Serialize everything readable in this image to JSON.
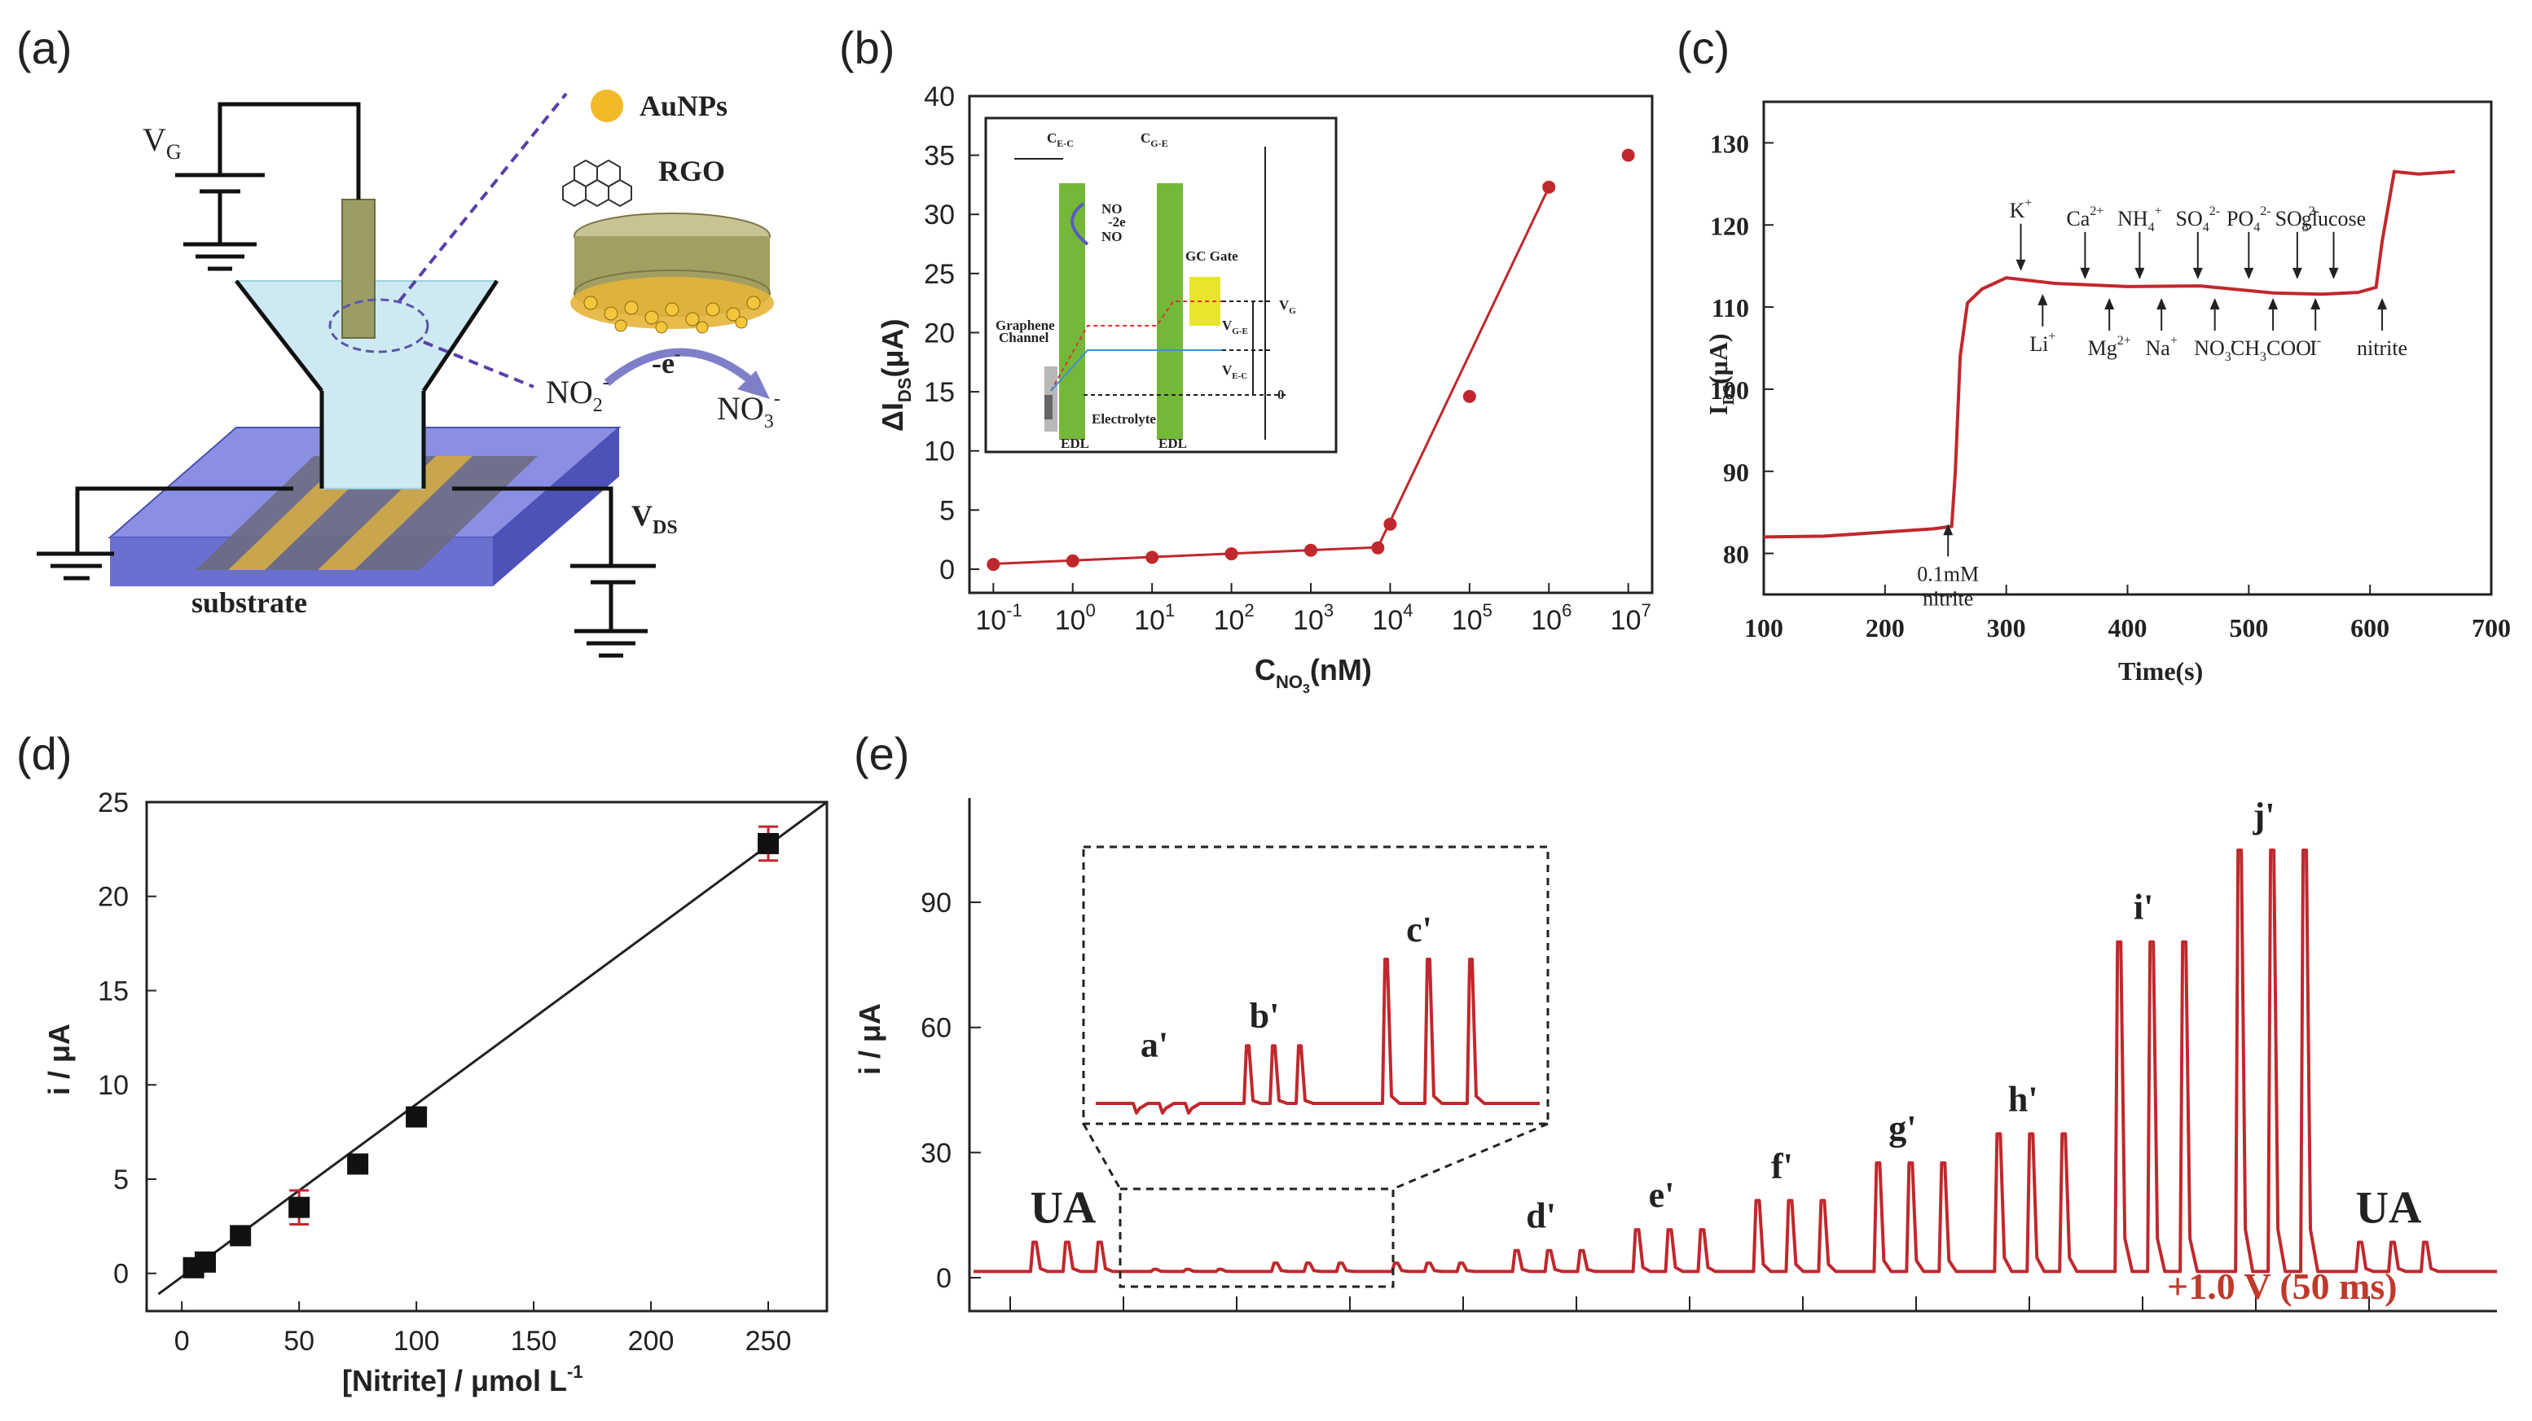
{
  "colors": {
    "series": "#c0282d",
    "fit": "#222222",
    "marker": "#111111",
    "gate": "#6fae2e",
    "substrate": "#7b7fd6",
    "electrode": "#c7a24a",
    "liquid": "#cfeaf2"
  },
  "panels": {
    "a": "(a)",
    "b": "(b)",
    "c": "(c)",
    "d": "(d)",
    "e": "(e)"
  },
  "schematic": {
    "vg": "V",
    "vg_sub": "G",
    "vds": "V",
    "vds_sub": "DS",
    "substrate": "substrate",
    "aunps": "AuNPs",
    "rgo": "RGO",
    "electron": "-e",
    "electron_sup": "-",
    "no2": "NO",
    "no2_sub": "2",
    "no2_sup": "-",
    "no3": "NO",
    "no3_sub": "3",
    "no3_sup": "-"
  },
  "inset_b": {
    "cec": "C",
    "cec_sub": "E-C",
    "cge": "C",
    "cge_sub": "G-E",
    "reaction1": "NO",
    "reaction2": "-2e",
    "reaction3": "NO",
    "gc_gate": "GC Gate",
    "graphene1": "Graphene",
    "graphene2": "Channel",
    "vg": "V",
    "vg_sub": "G",
    "vge": "V",
    "vge_sub": "G-E",
    "vec": "V",
    "vec_sub": "E-C",
    "zero": "0",
    "edl1": "EDL",
    "edl2": "EDL",
    "electrolyte": "Electrolyte"
  },
  "chart_data": [
    {
      "id": "b",
      "type": "scatter",
      "xscale": "log",
      "xlim": [
        0.05,
        20000000
      ],
      "ylim": [
        -2,
        40
      ],
      "xticks": [
        {
          "v": 0.1,
          "base": "10",
          "exp": "-1"
        },
        {
          "v": 1,
          "base": "10",
          "exp": "0"
        },
        {
          "v": 10,
          "base": "10",
          "exp": "1"
        },
        {
          "v": 100,
          "base": "10",
          "exp": "2"
        },
        {
          "v": 1000,
          "base": "10",
          "exp": "3"
        },
        {
          "v": 10000,
          "base": "10",
          "exp": "4"
        },
        {
          "v": 100000,
          "base": "10",
          "exp": "5"
        },
        {
          "v": 1000000,
          "base": "10",
          "exp": "6"
        },
        {
          "v": 10000000,
          "base": "10",
          "exp": "7"
        }
      ],
      "yticks": [
        "0",
        "5",
        "10",
        "15",
        "20",
        "25",
        "30",
        "35",
        "40"
      ],
      "xlabel": "C",
      "xlabel_sub": "NO",
      "xlabel_sub2": "3",
      "xlabel_unit": "(nM)",
      "ylabel": "ΔI",
      "ylabel_sub": "DS",
      "ylabel_unit": "(μA)",
      "points": [
        {
          "x": 0.1,
          "y": 0.4
        },
        {
          "x": 1,
          "y": 0.7
        },
        {
          "x": 10,
          "y": 1.0
        },
        {
          "x": 100,
          "y": 1.3
        },
        {
          "x": 1000,
          "y": 1.6
        },
        {
          "x": 7000,
          "y": 1.8
        },
        {
          "x": 10000,
          "y": 3.8
        },
        {
          "x": 100000,
          "y": 14.6
        },
        {
          "x": 1000000,
          "y": 32.3
        },
        {
          "x": 10000000,
          "y": 35.0
        }
      ],
      "fit1": {
        "x": [
          0.1,
          7000
        ],
        "y": [
          0.45,
          1.85
        ]
      },
      "fit2": {
        "x": [
          7000,
          1000000
        ],
        "y": [
          1.85,
          32.3
        ]
      }
    },
    {
      "id": "c",
      "type": "line",
      "xlim": [
        100,
        700
      ],
      "ylim": [
        75,
        135
      ],
      "xticks": [
        "100",
        "200",
        "300",
        "400",
        "500",
        "600",
        "700"
      ],
      "yticks": [
        "80",
        "90",
        "100",
        "110",
        "120",
        "130"
      ],
      "xlabel": "Time(s)",
      "ylabel": "I",
      "ylabel_sub": "DS",
      "ylabel_unit": "(μA)",
      "series": [
        {
          "x": [
            100,
            150,
            200,
            240,
            255,
            258,
            262,
            268,
            280,
            300,
            340,
            400,
            460,
            520,
            560,
            590,
            605,
            610,
            620,
            640,
            670
          ],
          "y": [
            82.0,
            82.1,
            82.6,
            83.0,
            83.3,
            90.0,
            104.0,
            110.5,
            112.5,
            113.3,
            112.9,
            112.2,
            112.5,
            112.0,
            111.6,
            112.0,
            112.4,
            118.0,
            126.5,
            126.2,
            126.5
          ]
        }
      ],
      "annotations": [
        {
          "x": 252,
          "y": 84,
          "lines": [
            "0.1mM",
            "nitrite"
          ],
          "pos": "below"
        },
        {
          "x": 312,
          "y": 114,
          "lines": [
            "K"
          ],
          "sup": "+",
          "pos": "above"
        },
        {
          "x": 330,
          "y": 112,
          "lines": [
            "Li"
          ],
          "sup": "+",
          "pos": "below"
        },
        {
          "x": 365,
          "y": 113,
          "lines": [
            "Ca"
          ],
          "sup": "2+",
          "pos": "above"
        },
        {
          "x": 385,
          "y": 111.5,
          "lines": [
            "Mg"
          ],
          "sup": "2+",
          "pos": "below"
        },
        {
          "x": 410,
          "y": 113,
          "lines": [
            "NH"
          ],
          "sub": "4",
          "sup": "+",
          "pos": "above"
        },
        {
          "x": 428,
          "y": 111.5,
          "lines": [
            "Na"
          ],
          "sup": "+",
          "pos": "below"
        },
        {
          "x": 458,
          "y": 113,
          "lines": [
            "SO"
          ],
          "sub": "4",
          "sup": "2-",
          "pos": "above"
        },
        {
          "x": 472,
          "y": 111.5,
          "lines": [
            "NO"
          ],
          "sub": "3",
          "sup": "-",
          "pos": "below"
        },
        {
          "x": 500,
          "y": 113,
          "lines": [
            "PO"
          ],
          "sub": "4",
          "sup": "2-",
          "pos": "above"
        },
        {
          "x": 520,
          "y": 111.5,
          "lines": [
            "CH"
          ],
          "sub": "3",
          "extra": "COO",
          "sup": "-",
          "pos": "below"
        },
        {
          "x": 540,
          "y": 113,
          "lines": [
            "SO"
          ],
          "sub": "3",
          "sup": "2-",
          "pos": "above"
        },
        {
          "x": 555,
          "y": 111.5,
          "lines": [
            "I"
          ],
          "sup": "-",
          "pos": "below"
        },
        {
          "x": 570,
          "y": 113,
          "lines": [
            "glucose"
          ],
          "pos": "above"
        },
        {
          "x": 610,
          "y": 111.5,
          "lines": [
            "nitrite"
          ],
          "pos": "below"
        }
      ]
    },
    {
      "id": "d",
      "type": "scatter",
      "xlim": [
        -15,
        275
      ],
      "ylim": [
        -2,
        25
      ],
      "xticks": [
        "0",
        "50",
        "100",
        "150",
        "200",
        "250"
      ],
      "yticks": [
        "0",
        "5",
        "10",
        "15",
        "20",
        "25"
      ],
      "xlabel": "[Nitrite] / μmol L",
      "xlabel_sup": "-1",
      "ylabel": "i / μA",
      "points": [
        {
          "x": 5,
          "y": 0.3,
          "err": 0.3
        },
        {
          "x": 10,
          "y": 0.6,
          "err": 0.3
        },
        {
          "x": 25,
          "y": 2.0,
          "err": 0.4
        },
        {
          "x": 50,
          "y": 3.5,
          "err": 0.9
        },
        {
          "x": 75,
          "y": 5.8,
          "err": 0.4
        },
        {
          "x": 100,
          "y": 8.3,
          "err": 0.4
        },
        {
          "x": 250,
          "y": 22.8,
          "err": 0.9
        }
      ],
      "fit": {
        "x": [
          -10,
          275
        ],
        "y": [
          -1.1,
          25.0
        ]
      }
    },
    {
      "id": "e",
      "type": "line",
      "ylim": [
        -8,
        115
      ],
      "yticks": [
        "0",
        "30",
        "60",
        "90"
      ],
      "ylabel": "i / μA",
      "groups": [
        {
          "label": "UA",
          "h": 7,
          "n": 3
        },
        {
          "label": "a'",
          "h": 0.5,
          "n": 3
        },
        {
          "label": "b'",
          "h": 2,
          "n": 3
        },
        {
          "label": "c'",
          "h": 2,
          "n": 3
        },
        {
          "label": "d'",
          "h": 5,
          "n": 3
        },
        {
          "label": "e'",
          "h": 10,
          "n": 3
        },
        {
          "label": "f'",
          "h": 17,
          "n": 3
        },
        {
          "label": "g'",
          "h": 26,
          "n": 3
        },
        {
          "label": "h'",
          "h": 33,
          "n": 3
        },
        {
          "label": "i'",
          "h": 79,
          "n": 3
        },
        {
          "label": "j'",
          "h": 101,
          "n": 3
        },
        {
          "label": "UA",
          "h": 7,
          "n": 3
        }
      ],
      "inset_groups": [
        {
          "label": "a'",
          "h": 3,
          "n": 3
        },
        {
          "label": "b'",
          "h": 24,
          "n": 3
        },
        {
          "label": "c'",
          "h": 60,
          "n": 3
        }
      ],
      "potential": "+1.0 V (50 ms)"
    }
  ]
}
